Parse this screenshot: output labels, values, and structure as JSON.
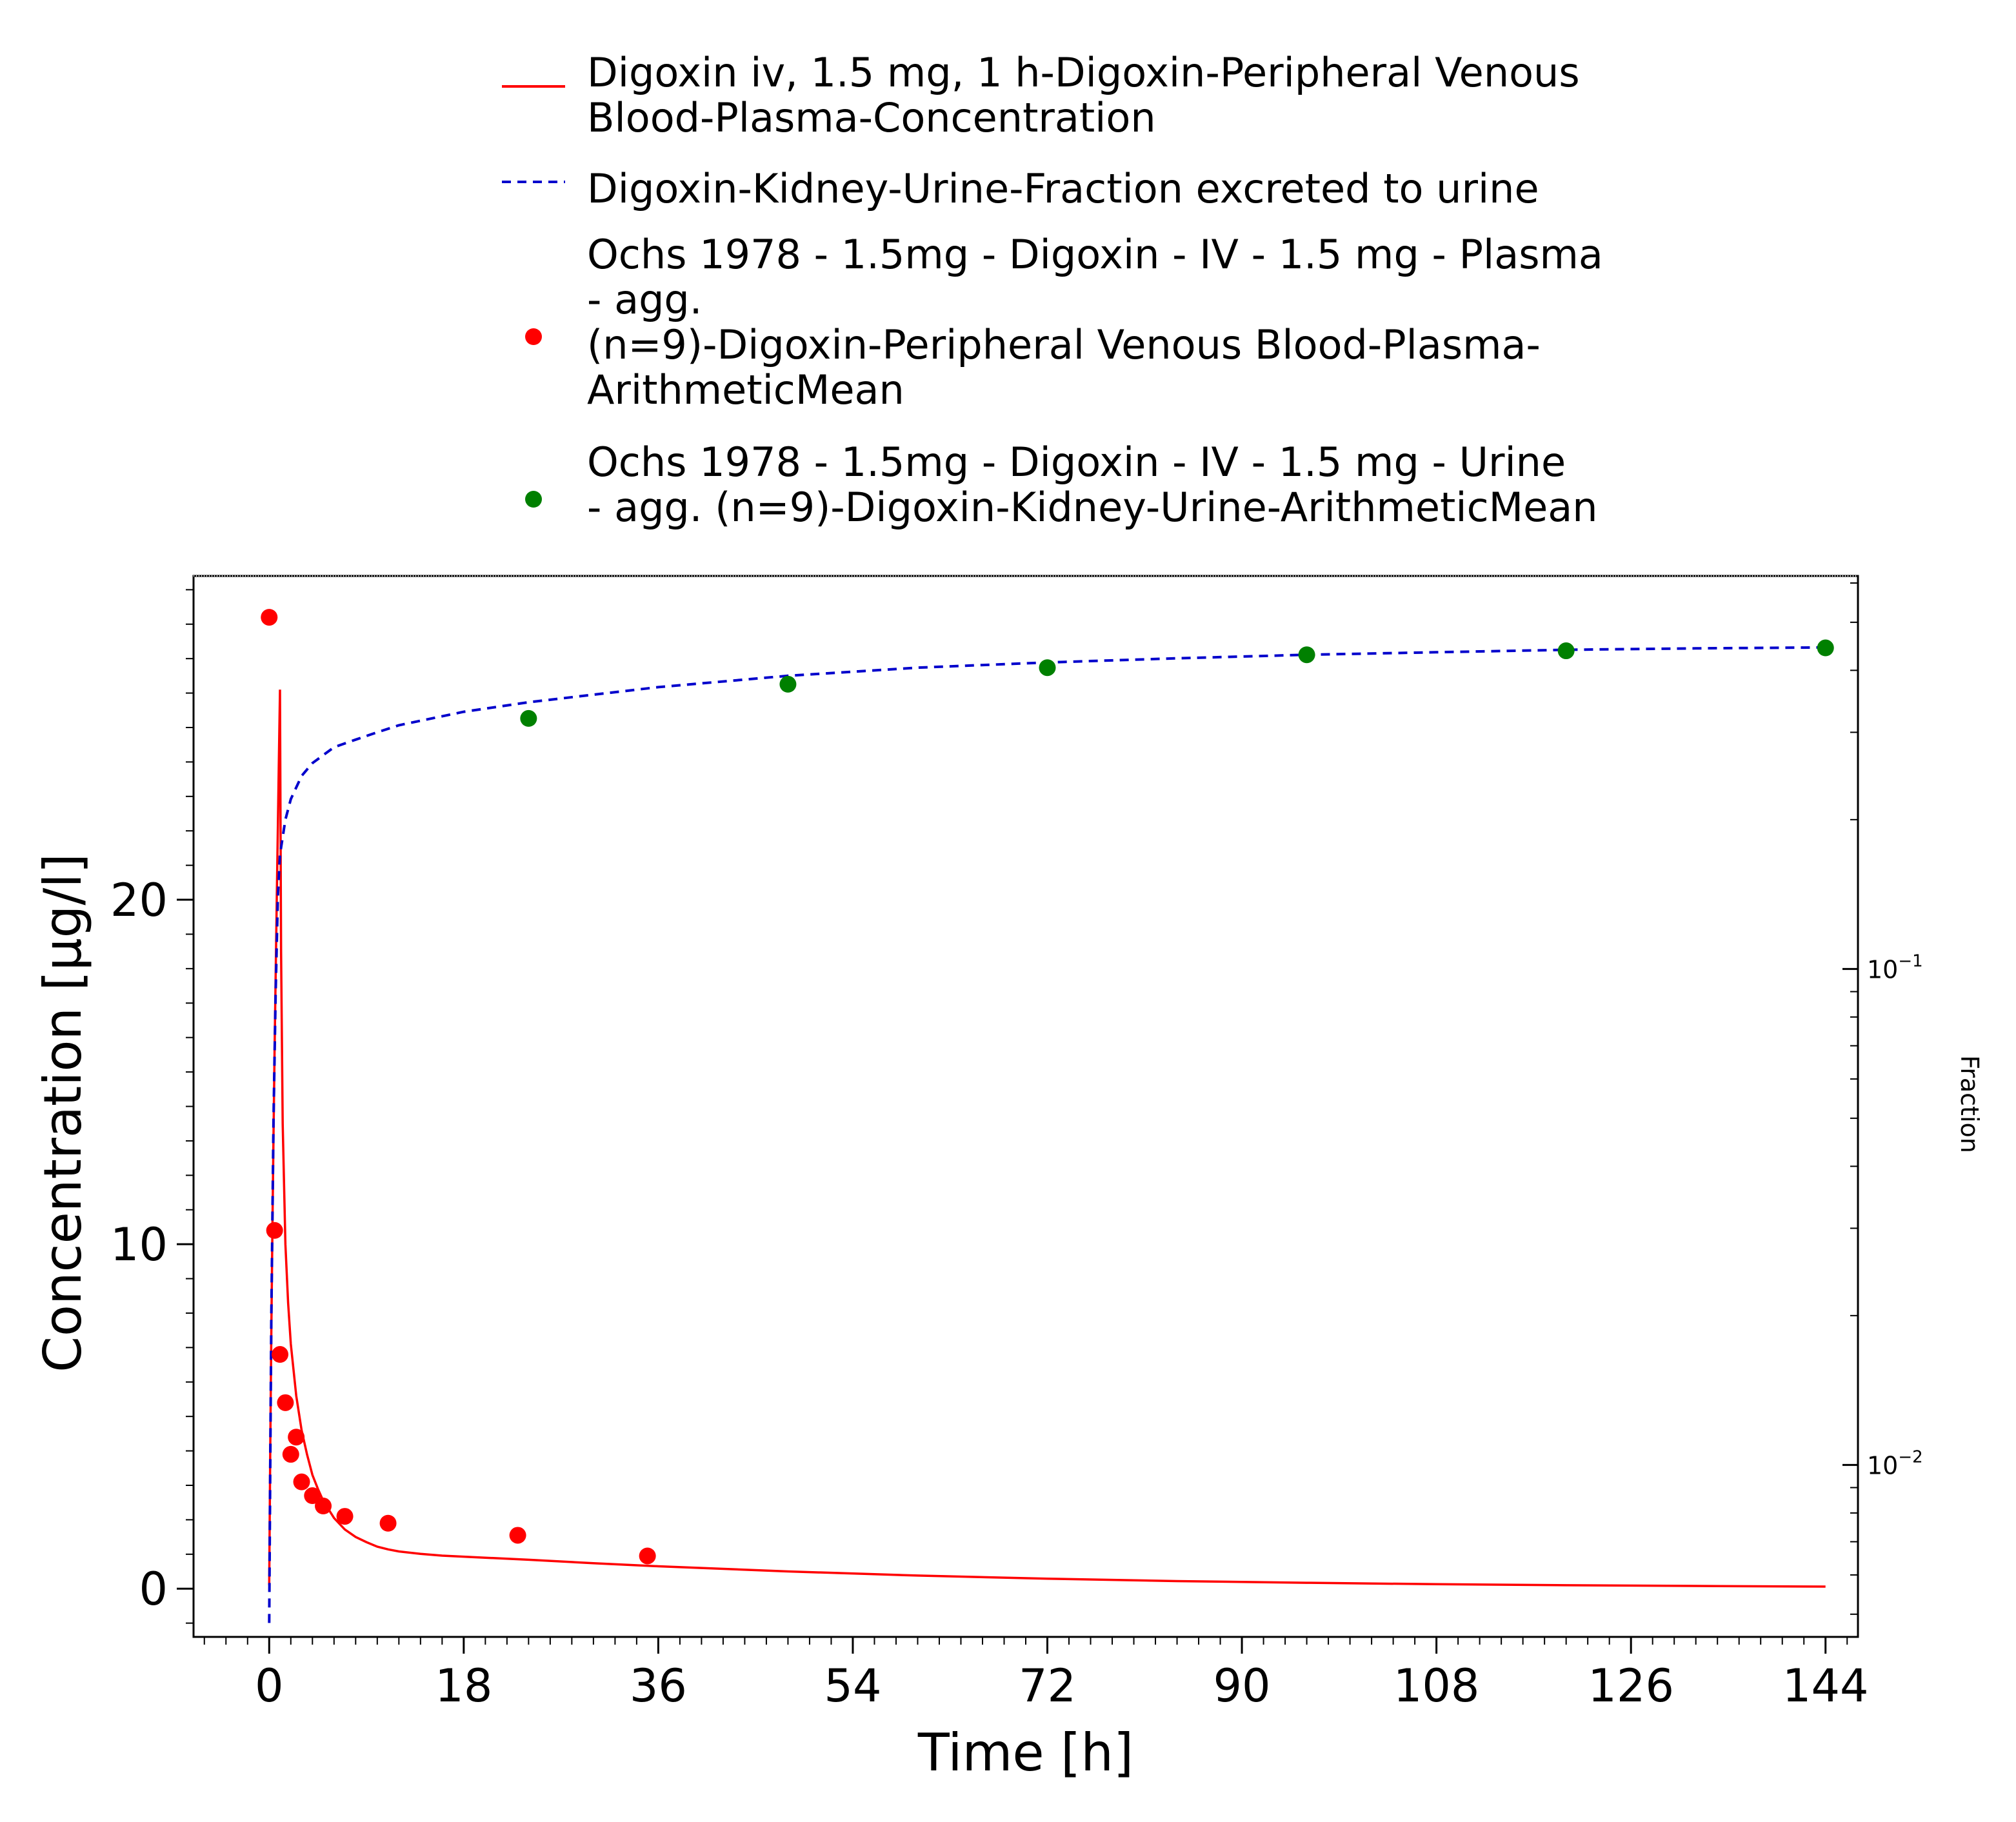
{
  "chart_data": {
    "type": "line",
    "xlabel": "Time [h]",
    "ylabel": "Concentration [µg/l]",
    "y2label": "Fraction",
    "x_ticks": [
      "0",
      "18",
      "36",
      "54",
      "72",
      "90",
      "108",
      "126",
      "144"
    ],
    "y_ticks": [
      "0",
      "10",
      "20"
    ],
    "y2_ticks": [
      {
        "base": "10",
        "exp": "−2"
      },
      {
        "base": "10",
        "exp": "−1"
      }
    ],
    "xlim": [
      -7,
      147
    ],
    "ylim": [
      -1.4,
      29.4
    ],
    "y2lim": [
      0.0045,
      0.62
    ],
    "y2scale": "log",
    "grid": false,
    "legend_position": "top",
    "legend": [
      {
        "marker": "solid-line",
        "color": "#ff0000",
        "lines": [
          "Digoxin iv, 1.5 mg, 1 h-Digoxin-Peripheral Venous",
          "Blood-Plasma-Concentration"
        ]
      },
      {
        "marker": "dashed-line",
        "color": "#0000cc",
        "lines": [
          "Digoxin-Kidney-Urine-Fraction excreted to urine"
        ]
      },
      {
        "marker": "dot",
        "color": "#ff0000",
        "lines": [
          "Ochs 1978 - 1.5mg - Digoxin - IV - 1.5 mg - Plasma",
          "- agg.",
          "(n=9)-Digoxin-Peripheral Venous Blood-Plasma-",
          "ArithmeticMean"
        ]
      },
      {
        "marker": "dot",
        "color": "#008000",
        "lines": [
          "Ochs 1978 - 1.5mg - Digoxin - IV - 1.5 mg - Urine",
          "- agg. (n=9)-Digoxin-Kidney-Urine-ArithmeticMean"
        ]
      }
    ],
    "series": [
      {
        "name": "Digoxin iv, 1.5 mg, 1 h-Digoxin-Peripheral Venous Blood-Plasma-Concentration",
        "kind": "line",
        "axis": "left",
        "color": "#ff0000",
        "x": [
          0,
          0.1,
          0.2,
          0.3,
          0.4,
          0.5,
          0.6,
          0.7,
          0.8,
          0.9,
          1.0,
          1.1,
          1.25,
          1.5,
          1.75,
          2,
          2.5,
          3,
          3.5,
          4,
          4.5,
          5,
          6,
          7,
          8,
          9,
          10,
          11,
          12,
          14,
          16,
          18,
          20,
          24,
          30,
          36,
          48,
          60,
          72,
          84,
          96,
          108,
          120,
          132,
          144
        ],
        "y": [
          0.1,
          4.0,
          7.5,
          10.5,
          13.2,
          15.6,
          17.8,
          20.0,
          22.1,
          24.2,
          26.1,
          18.5,
          13.5,
          10.0,
          8.3,
          7.1,
          5.6,
          4.6,
          3.9,
          3.3,
          2.9,
          2.55,
          2.05,
          1.72,
          1.5,
          1.35,
          1.22,
          1.14,
          1.08,
          1.01,
          0.96,
          0.93,
          0.9,
          0.84,
          0.74,
          0.65,
          0.5,
          0.38,
          0.29,
          0.22,
          0.17,
          0.13,
          0.1,
          0.08,
          0.06
        ]
      },
      {
        "name": "Digoxin-Kidney-Urine-Fraction excreted to urine",
        "kind": "line",
        "axis": "right",
        "dashed": true,
        "color": "#0000cc",
        "x": [
          0,
          0.1,
          0.2,
          0.4,
          0.6,
          0.8,
          1.0,
          1.5,
          2,
          3,
          4,
          6,
          8,
          10,
          12,
          18,
          24,
          36,
          48,
          60,
          72,
          84,
          96,
          108,
          120,
          132,
          144
        ],
        "y": [
          0.0048,
          0.01,
          0.02,
          0.05,
          0.09,
          0.14,
          0.17,
          0.2,
          0.22,
          0.245,
          0.26,
          0.28,
          0.29,
          0.3,
          0.31,
          0.33,
          0.345,
          0.37,
          0.39,
          0.405,
          0.415,
          0.423,
          0.43,
          0.435,
          0.44,
          0.443,
          0.445
        ]
      },
      {
        "name": "Ochs 1978 - 1.5mg - Digoxin - IV - 1.5 mg - Plasma - agg. (n=9)-Digoxin-Peripheral Venous Blood-Plasma-ArithmeticMean",
        "kind": "scatter",
        "axis": "left",
        "color": "#ff0000",
        "x": [
          0.0,
          0.5,
          1.0,
          1.5,
          2.0,
          2.5,
          3.0,
          4.0,
          5.0,
          7.0,
          11.0,
          23.0,
          35.0
        ],
        "y": [
          28.2,
          10.4,
          6.8,
          5.4,
          3.9,
          4.4,
          3.1,
          2.7,
          2.4,
          2.1,
          1.9,
          1.55,
          0.95
        ]
      },
      {
        "name": "Ochs 1978 - 1.5mg - Digoxin - IV - 1.5 mg - Urine - agg. (n=9)-Digoxin-Kidney-Urine-ArithmeticMean",
        "kind": "scatter",
        "axis": "right",
        "color": "#008000",
        "x": [
          24,
          48,
          72,
          96,
          120,
          144
        ],
        "y": [
          0.32,
          0.375,
          0.405,
          0.43,
          0.438,
          0.444
        ]
      }
    ]
  }
}
